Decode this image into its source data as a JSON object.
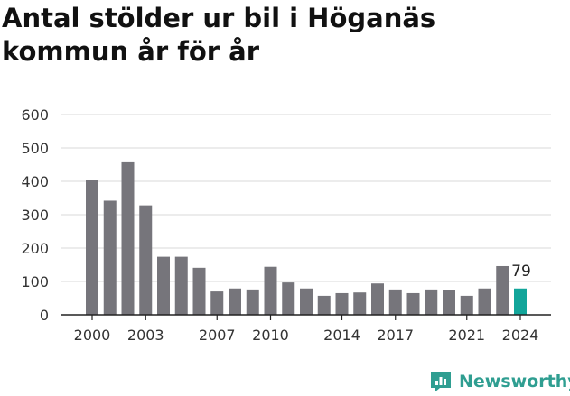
{
  "title": "Antal stölder ur bil i Höganäs kommun år för år",
  "chart_data": {
    "type": "bar",
    "title": "Antal stölder ur bil i Höganäs kommun år för år",
    "xlabel": "",
    "ylabel": "",
    "ylim": [
      0,
      600
    ],
    "yticks": [
      "0",
      "100",
      "200",
      "300",
      "400",
      "500",
      "600"
    ],
    "xtick_labels": [
      "2000",
      "2003",
      "2007",
      "2010",
      "2014",
      "2017",
      "2021",
      "2024"
    ],
    "grid": true,
    "categories": [
      2000,
      2001,
      2002,
      2003,
      2004,
      2005,
      2006,
      2007,
      2008,
      2009,
      2010,
      2011,
      2012,
      2013,
      2014,
      2015,
      2016,
      2017,
      2018,
      2019,
      2020,
      2021,
      2022,
      2023,
      2024
    ],
    "values": [
      405,
      342,
      457,
      328,
      174,
      174,
      141,
      70,
      79,
      76,
      144,
      97,
      79,
      57,
      65,
      67,
      94,
      76,
      65,
      76,
      73,
      57,
      79,
      146,
      79
    ],
    "highlight_label": "79",
    "colors": {
      "bar": "#76757b",
      "highlight": "#12a59a",
      "grid": "#d9d9d9"
    }
  },
  "brand": {
    "name": "Newsworthy",
    "icon": "newsworthy-logo-icon",
    "color": "#2f9e91"
  }
}
